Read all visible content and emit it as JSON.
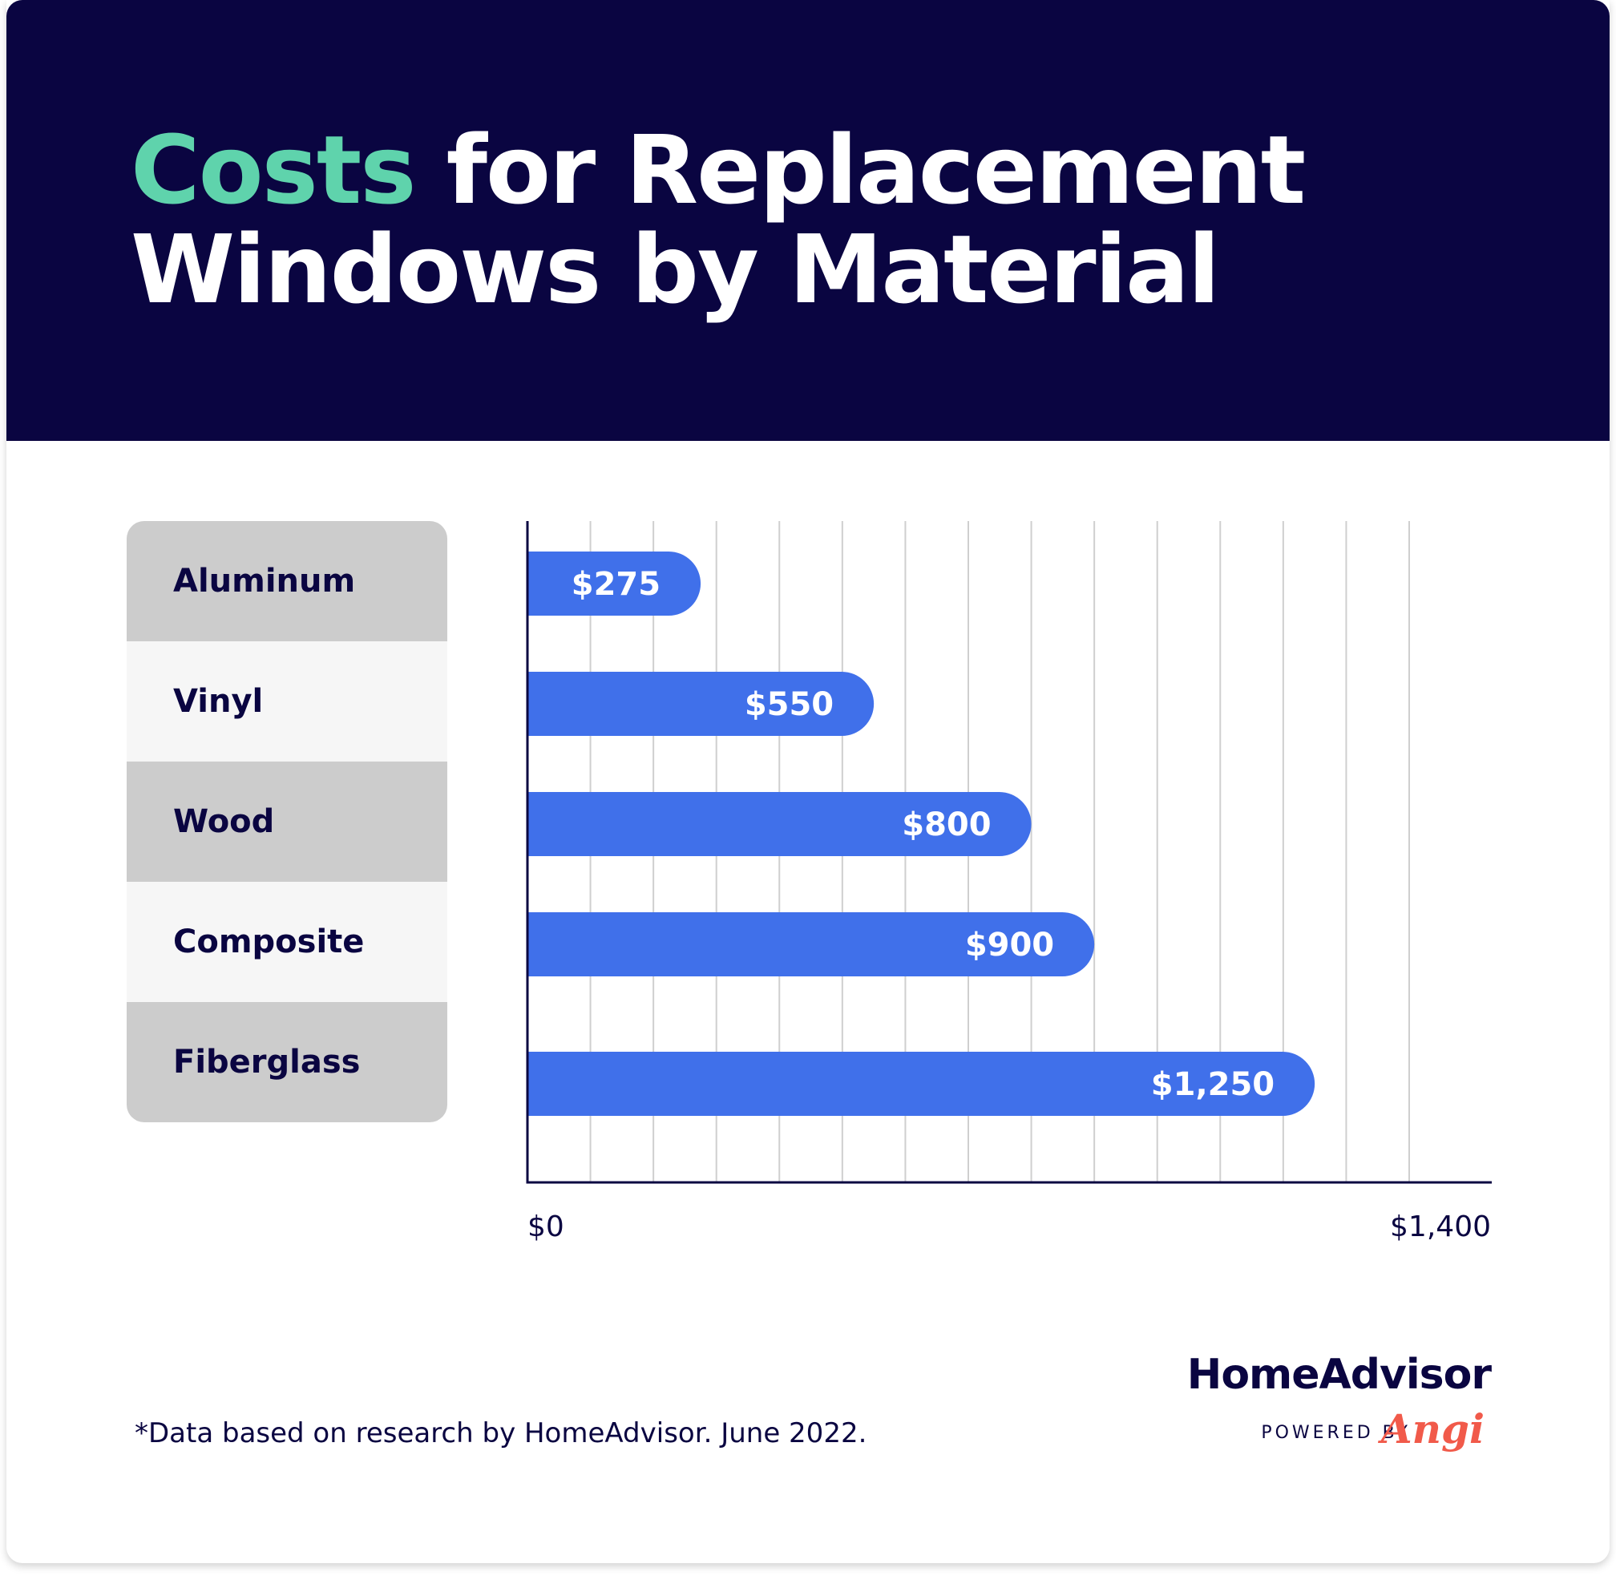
{
  "header": {
    "title_accent": "Costs",
    "title_rest_line1": " for Replacement",
    "title_line2": "Windows by Material"
  },
  "footer": {
    "footnote": "*Data based on research by HomeAdvisor. June 2022.",
    "brand": "HomeAdvisor",
    "powered_by": "POWERED BY",
    "angi": "Angi"
  },
  "colors": {
    "header_bg": "#0a0541",
    "accent": "#5fd3ac",
    "bar": "#4070ea",
    "label_dark": "#cccccc",
    "label_light": "#f6f6f6",
    "grid": "#cfcfcf",
    "text": "#0a0541",
    "angi": "#f15a4a"
  },
  "chart_data": {
    "type": "bar",
    "orientation": "horizontal",
    "title": "Costs for Replacement Windows by Material",
    "categories": [
      "Aluminum",
      "Vinyl",
      "Wood",
      "Composite",
      "Fiberglass"
    ],
    "values": [
      275,
      550,
      800,
      900,
      1250
    ],
    "value_labels": [
      "$275",
      "$550",
      "$800",
      "$900",
      "$1,250"
    ],
    "xlim": [
      0,
      1400
    ],
    "x_ticks": [
      "$0",
      "$1,400"
    ],
    "grid": true
  }
}
